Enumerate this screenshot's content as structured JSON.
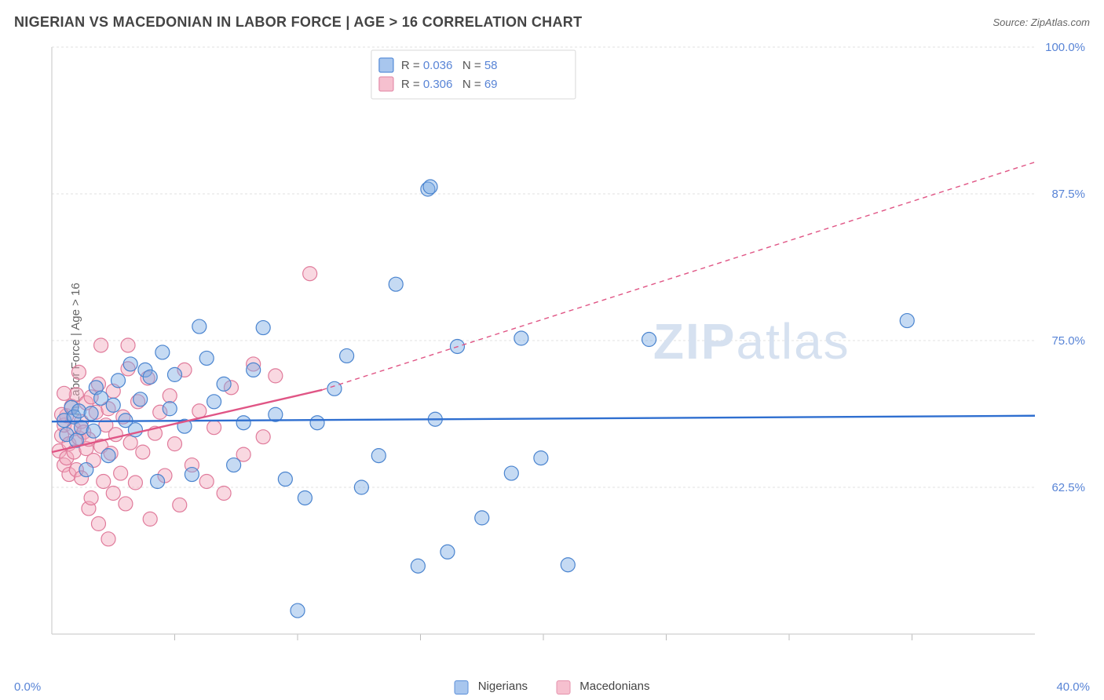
{
  "title": "NIGERIAN VS MACEDONIAN IN LABOR FORCE | AGE > 16 CORRELATION CHART",
  "source": "Source: ZipAtlas.com",
  "ylabel": "In Labor Force | Age > 16",
  "watermark": "ZIPatlas",
  "chart": {
    "type": "scatter",
    "background_color": "#ffffff",
    "grid_color": "#e0e0e0",
    "axis_label_color": "#5884d6",
    "text_color": "#555555",
    "xlim": [
      0,
      40
    ],
    "ylim": [
      50,
      100
    ],
    "xtick_step": 5,
    "ytick_step": 12.5,
    "x_labels_shown": [
      {
        "value": 0,
        "text": "0.0%"
      },
      {
        "value": 40,
        "text": "40.0%"
      }
    ],
    "y_labels_shown": [
      {
        "value": 62.5,
        "text": "62.5%"
      },
      {
        "value": 75.0,
        "text": "75.0%"
      },
      {
        "value": 87.5,
        "text": "87.5%"
      },
      {
        "value": 100.0,
        "text": "100.0%"
      }
    ],
    "marker_radius": 9,
    "marker_fill_opacity": 0.45,
    "marker_stroke_width": 1.2,
    "trend_solid_width": 2.4,
    "trend_dash_pattern": "6,5"
  },
  "series": [
    {
      "name": "Nigerians",
      "swatch_fill": "#a8c6ee",
      "swatch_stroke": "#5b8fd9",
      "marker_fill": "#7eaee4",
      "marker_stroke": "#4a84cf",
      "trend_color": "#2f6fd0",
      "r": "0.036",
      "n": "58",
      "trend_solid": {
        "x1": 0,
        "y1": 68.1,
        "x2": 40,
        "y2": 68.6
      },
      "trend_dash": {
        "x1": 40,
        "y1": 68.6,
        "x2": 40,
        "y2": 68.6
      },
      "points": [
        [
          0.5,
          68.2
        ],
        [
          0.6,
          67.0
        ],
        [
          0.8,
          69.3
        ],
        [
          0.9,
          68.5
        ],
        [
          1.0,
          66.5
        ],
        [
          1.1,
          69.0
        ],
        [
          1.2,
          67.6
        ],
        [
          1.4,
          64.0
        ],
        [
          1.6,
          68.8
        ],
        [
          1.7,
          67.3
        ],
        [
          1.8,
          71.0
        ],
        [
          2.0,
          70.1
        ],
        [
          2.3,
          65.2
        ],
        [
          2.5,
          69.5
        ],
        [
          2.7,
          71.6
        ],
        [
          3.0,
          68.2
        ],
        [
          3.2,
          73.0
        ],
        [
          3.4,
          67.4
        ],
        [
          3.6,
          70.0
        ],
        [
          3.8,
          72.5
        ],
        [
          4.0,
          71.9
        ],
        [
          4.3,
          63.0
        ],
        [
          4.5,
          74.0
        ],
        [
          4.8,
          69.2
        ],
        [
          5.0,
          72.1
        ],
        [
          5.4,
          67.7
        ],
        [
          5.7,
          63.6
        ],
        [
          6.0,
          76.2
        ],
        [
          6.3,
          73.5
        ],
        [
          6.6,
          69.8
        ],
        [
          7.0,
          71.3
        ],
        [
          7.4,
          64.4
        ],
        [
          7.8,
          68.0
        ],
        [
          8.2,
          72.5
        ],
        [
          8.6,
          76.1
        ],
        [
          9.1,
          68.7
        ],
        [
          9.5,
          63.2
        ],
        [
          10.3,
          61.6
        ],
        [
          10.8,
          68.0
        ],
        [
          11.5,
          70.9
        ],
        [
          12.0,
          73.7
        ],
        [
          12.6,
          62.5
        ],
        [
          13.3,
          65.2
        ],
        [
          14.0,
          79.8
        ],
        [
          14.9,
          55.8
        ],
        [
          15.3,
          87.9
        ],
        [
          15.6,
          68.3
        ],
        [
          16.1,
          57.0
        ],
        [
          16.5,
          74.5
        ],
        [
          17.5,
          59.9
        ],
        [
          18.7,
          63.7
        ],
        [
          19.1,
          75.2
        ],
        [
          19.9,
          65.0
        ],
        [
          21.0,
          55.9
        ],
        [
          24.3,
          75.1
        ],
        [
          34.8,
          76.7
        ],
        [
          10.0,
          52.0
        ],
        [
          15.4,
          88.1
        ]
      ]
    },
    {
      "name": "Macedonians",
      "swatch_fill": "#f6c0cf",
      "swatch_stroke": "#e592ad",
      "marker_fill": "#f2a8bd",
      "marker_stroke": "#e07b9b",
      "trend_color": "#e05585",
      "r": "0.306",
      "n": "69",
      "trend_solid": {
        "x1": 0,
        "y1": 65.5,
        "x2": 11,
        "y2": 70.8
      },
      "trend_dash": {
        "x1": 11,
        "y1": 70.8,
        "x2": 40,
        "y2": 90.2
      },
      "points": [
        [
          0.3,
          65.6
        ],
        [
          0.4,
          66.9
        ],
        [
          0.5,
          64.4
        ],
        [
          0.5,
          67.8
        ],
        [
          0.6,
          65.0
        ],
        [
          0.6,
          68.6
        ],
        [
          0.7,
          63.6
        ],
        [
          0.7,
          66.2
        ],
        [
          0.8,
          69.4
        ],
        [
          0.9,
          65.5
        ],
        [
          0.9,
          67.5
        ],
        [
          1.0,
          64.0
        ],
        [
          1.0,
          70.4
        ],
        [
          1.1,
          66.7
        ],
        [
          1.1,
          72.3
        ],
        [
          1.2,
          63.3
        ],
        [
          1.2,
          68.1
        ],
        [
          1.3,
          67.2
        ],
        [
          1.4,
          65.8
        ],
        [
          1.4,
          69.7
        ],
        [
          1.5,
          60.7
        ],
        [
          1.5,
          66.6
        ],
        [
          1.6,
          61.6
        ],
        [
          1.6,
          70.2
        ],
        [
          1.7,
          64.8
        ],
        [
          1.8,
          68.9
        ],
        [
          1.9,
          59.4
        ],
        [
          1.9,
          71.3
        ],
        [
          2.0,
          66.0
        ],
        [
          2.0,
          74.6
        ],
        [
          2.1,
          63.0
        ],
        [
          2.2,
          67.8
        ],
        [
          2.3,
          58.1
        ],
        [
          2.3,
          69.2
        ],
        [
          2.4,
          65.4
        ],
        [
          2.5,
          62.0
        ],
        [
          2.5,
          70.7
        ],
        [
          2.6,
          67.0
        ],
        [
          2.8,
          63.7
        ],
        [
          2.9,
          68.5
        ],
        [
          3.0,
          61.1
        ],
        [
          3.1,
          72.6
        ],
        [
          3.2,
          66.3
        ],
        [
          3.4,
          62.9
        ],
        [
          3.5,
          69.8
        ],
        [
          3.7,
          65.5
        ],
        [
          3.9,
          71.8
        ],
        [
          4.0,
          59.8
        ],
        [
          4.2,
          67.1
        ],
        [
          4.4,
          68.9
        ],
        [
          4.6,
          63.5
        ],
        [
          4.8,
          70.3
        ],
        [
          5.0,
          66.2
        ],
        [
          5.2,
          61.0
        ],
        [
          5.4,
          72.5
        ],
        [
          5.7,
          64.4
        ],
        [
          6.0,
          69.0
        ],
        [
          6.3,
          63.0
        ],
        [
          6.6,
          67.6
        ],
        [
          7.0,
          62.0
        ],
        [
          7.3,
          71.0
        ],
        [
          7.8,
          65.3
        ],
        [
          8.2,
          73.0
        ],
        [
          8.6,
          66.8
        ],
        [
          9.1,
          72.0
        ],
        [
          10.5,
          80.7
        ],
        [
          0.5,
          70.5
        ],
        [
          3.1,
          74.6
        ],
        [
          0.4,
          68.7
        ]
      ]
    }
  ],
  "bottom_legend": [
    {
      "label": "Nigerians",
      "series_idx": 0
    },
    {
      "label": "Macedonians",
      "series_idx": 1
    }
  ],
  "xmin_label": "0.0%",
  "xmax_label": "40.0%"
}
